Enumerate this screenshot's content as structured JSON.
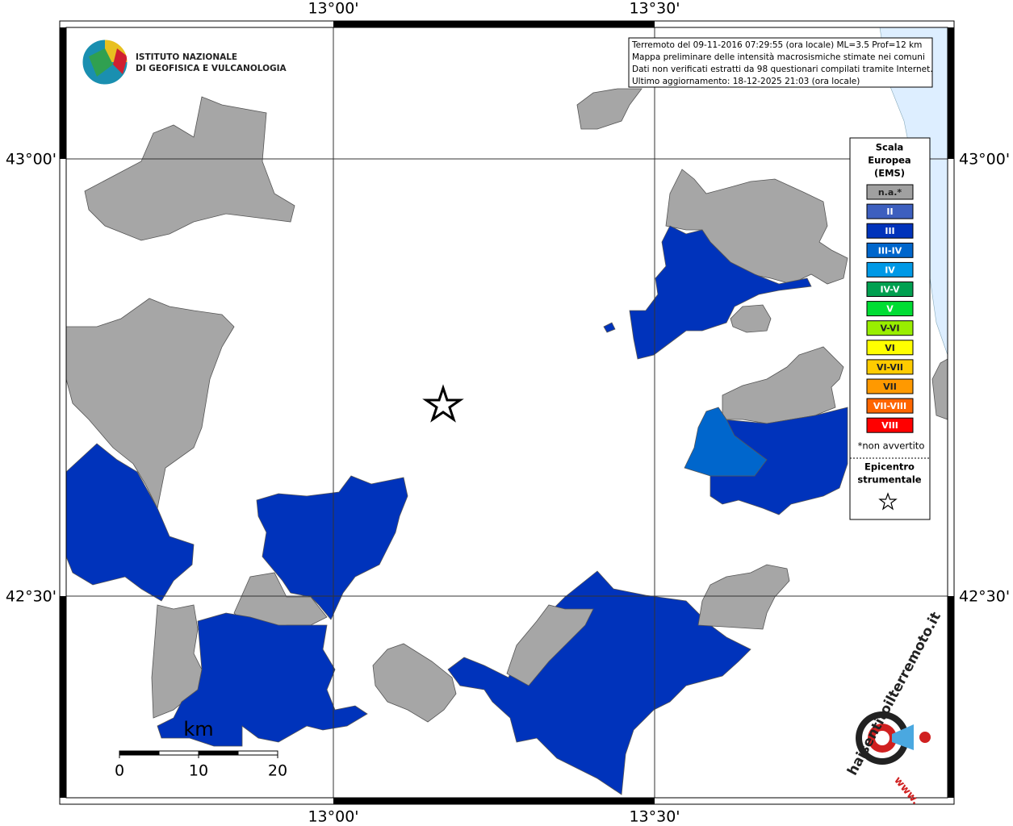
{
  "map": {
    "lon_labels": [
      "13°00'",
      "13°30'"
    ],
    "lat_labels": [
      "43°00'",
      "42°30'"
    ]
  },
  "info_box": {
    "lines": [
      "Terremoto del 09-11-2016 07:29:55 (ora locale) ML=3.5 Prof=12 km",
      "Mappa preliminare delle intensità macrosismiche stimate nei comuni",
      "Dati non verificati estratti da 98 questionari compilati tramite Internet.",
      "Ultimo aggiornamento: 18-12-2025 21:03 (ora locale)"
    ]
  },
  "logo": {
    "lines": [
      "ISTITUTO NAZIONALE",
      "DI GEOFISICA E VULCANOLOGIA"
    ]
  },
  "legend": {
    "title": [
      "Scala",
      "Europea",
      "(EMS)"
    ],
    "items": [
      {
        "label": "n.a.*",
        "color": "#a0a0a0"
      },
      {
        "label": "II",
        "color": "#3d5fbf"
      },
      {
        "label": "III",
        "color": "#0033bb"
      },
      {
        "label": "III-IV",
        "color": "#0066cc"
      },
      {
        "label": "IV",
        "color": "#0099e6"
      },
      {
        "label": "IV-V",
        "color": "#00a050"
      },
      {
        "label": "V",
        "color": "#00dd33"
      },
      {
        "label": "V-VI",
        "color": "#99ee00"
      },
      {
        "label": "VI",
        "color": "#ffff00"
      },
      {
        "label": "VI-VII",
        "color": "#ffcc00"
      },
      {
        "label": "VII",
        "color": "#ff9900"
      },
      {
        "label": "VII-VIII",
        "color": "#ff6600"
      },
      {
        "label": "VIII",
        "color": "#ff0000"
      }
    ],
    "note": "*non avvertito",
    "epicenter": [
      "Epicentro",
      "strumentale"
    ]
  },
  "scale_bar": {
    "unit": "km",
    "ticks": [
      0,
      10,
      20
    ]
  },
  "site_logo": {
    "prefix": "www.",
    "text": "haisentitoilterremoto.it"
  }
}
